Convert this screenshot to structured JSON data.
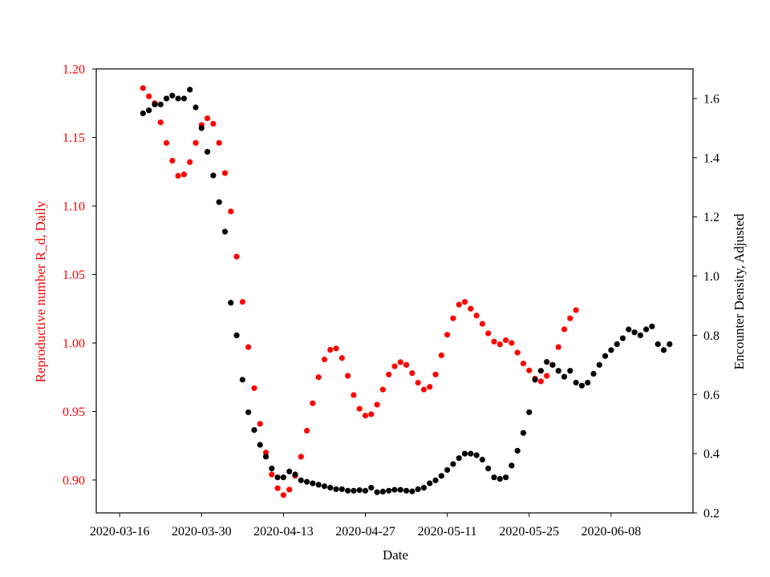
{
  "chart_data": {
    "type": "scatter",
    "xlabel": "Date",
    "x_ticks": [
      "2020-03-16",
      "2020-03-30",
      "2020-04-13",
      "2020-04-27",
      "2020-05-11",
      "2020-05-25",
      "2020-06-08"
    ],
    "y_left": {
      "label": "Reproductive number R_d, Daily",
      "color": "#ff0000",
      "range": [
        0.876,
        1.2
      ],
      "ticks": [
        "0.90",
        "0.95",
        "1.00",
        "1.05",
        "1.10",
        "1.15",
        "1.20"
      ]
    },
    "y_right": {
      "label": "Encounter Density, Adjusted",
      "color": "#000000",
      "range": [
        0.2,
        1.7
      ],
      "ticks": [
        "0.2",
        "0.4",
        "0.6",
        "0.8",
        "1.0",
        "1.2",
        "1.4",
        "1.6"
      ]
    },
    "x_range": [
      "2020-03-12",
      "2020-06-22"
    ],
    "series": [
      {
        "axis": "left",
        "color": "#ff0000",
        "points": [
          [
            "2020-03-20",
            1.186
          ],
          [
            "2020-03-21",
            1.18
          ],
          [
            "2020-03-22",
            1.175
          ],
          [
            "2020-03-23",
            1.161
          ],
          [
            "2020-03-24",
            1.146
          ],
          [
            "2020-03-25",
            1.133
          ],
          [
            "2020-03-26",
            1.122
          ],
          [
            "2020-03-27",
            1.123
          ],
          [
            "2020-03-28",
            1.132
          ],
          [
            "2020-03-29",
            1.146
          ],
          [
            "2020-03-30",
            1.159
          ],
          [
            "2020-03-31",
            1.164
          ],
          [
            "2020-04-01",
            1.16
          ],
          [
            "2020-04-02",
            1.146
          ],
          [
            "2020-04-03",
            1.124
          ],
          [
            "2020-04-04",
            1.096
          ],
          [
            "2020-04-05",
            1.063
          ],
          [
            "2020-04-06",
            1.03
          ],
          [
            "2020-04-07",
            0.997
          ],
          [
            "2020-04-08",
            0.967
          ],
          [
            "2020-04-09",
            0.941
          ],
          [
            "2020-04-10",
            0.92
          ],
          [
            "2020-04-11",
            0.904
          ],
          [
            "2020-04-12",
            0.894
          ],
          [
            "2020-04-13",
            0.889
          ],
          [
            "2020-04-14",
            0.893
          ],
          [
            "2020-04-15",
            0.903
          ],
          [
            "2020-04-16",
            0.917
          ],
          [
            "2020-04-17",
            0.936
          ],
          [
            "2020-04-18",
            0.956
          ],
          [
            "2020-04-19",
            0.975
          ],
          [
            "2020-04-20",
            0.988
          ],
          [
            "2020-04-21",
            0.995
          ],
          [
            "2020-04-22",
            0.996
          ],
          [
            "2020-04-23",
            0.989
          ],
          [
            "2020-04-24",
            0.976
          ],
          [
            "2020-04-25",
            0.962
          ],
          [
            "2020-04-26",
            0.952
          ],
          [
            "2020-04-27",
            0.947
          ],
          [
            "2020-04-28",
            0.948
          ],
          [
            "2020-04-29",
            0.955
          ],
          [
            "2020-04-30",
            0.966
          ],
          [
            "2020-05-01",
            0.977
          ],
          [
            "2020-05-02",
            0.983
          ],
          [
            "2020-05-03",
            0.986
          ],
          [
            "2020-05-04",
            0.984
          ],
          [
            "2020-05-05",
            0.978
          ],
          [
            "2020-05-06",
            0.971
          ],
          [
            "2020-05-07",
            0.966
          ],
          [
            "2020-05-08",
            0.968
          ],
          [
            "2020-05-09",
            0.977
          ],
          [
            "2020-05-10",
            0.991
          ],
          [
            "2020-05-11",
            1.006
          ],
          [
            "2020-05-12",
            1.018
          ],
          [
            "2020-05-13",
            1.028
          ],
          [
            "2020-05-14",
            1.03
          ],
          [
            "2020-05-15",
            1.025
          ],
          [
            "2020-05-16",
            1.02
          ],
          [
            "2020-05-17",
            1.014
          ],
          [
            "2020-05-18",
            1.007
          ],
          [
            "2020-05-19",
            1.001
          ],
          [
            "2020-05-20",
            0.999
          ],
          [
            "2020-05-21",
            1.002
          ],
          [
            "2020-05-22",
            1.0
          ],
          [
            "2020-05-23",
            0.993
          ],
          [
            "2020-05-24",
            0.985
          ],
          [
            "2020-05-25",
            0.98
          ],
          [
            "2020-05-26",
            0.974
          ],
          [
            "2020-05-27",
            0.972
          ],
          [
            "2020-05-28",
            0.976
          ],
          [
            "2020-05-29",
            0.984
          ],
          [
            "2020-05-30",
            0.997
          ],
          [
            "2020-05-31",
            1.01
          ],
          [
            "2020-06-01",
            1.018
          ],
          [
            "2020-06-02",
            1.024
          ]
        ]
      },
      {
        "axis": "right",
        "color": "#000000",
        "points": [
          [
            "2020-03-20",
            1.55
          ],
          [
            "2020-03-21",
            1.56
          ],
          [
            "2020-03-22",
            1.58
          ],
          [
            "2020-03-23",
            1.58
          ],
          [
            "2020-03-24",
            1.6
          ],
          [
            "2020-03-25",
            1.61
          ],
          [
            "2020-03-26",
            1.6
          ],
          [
            "2020-03-27",
            1.6
          ],
          [
            "2020-03-28",
            1.63
          ],
          [
            "2020-03-29",
            1.57
          ],
          [
            "2020-03-30",
            1.5
          ],
          [
            "2020-03-31",
            1.42
          ],
          [
            "2020-04-01",
            1.34
          ],
          [
            "2020-04-02",
            1.25
          ],
          [
            "2020-04-03",
            1.15
          ],
          [
            "2020-04-04",
            0.91
          ],
          [
            "2020-04-05",
            0.8
          ],
          [
            "2020-04-06",
            0.65
          ],
          [
            "2020-04-07",
            0.54
          ],
          [
            "2020-04-08",
            0.48
          ],
          [
            "2020-04-09",
            0.43
          ],
          [
            "2020-04-10",
            0.39
          ],
          [
            "2020-04-11",
            0.35
          ],
          [
            "2020-04-12",
            0.32
          ],
          [
            "2020-04-13",
            0.32
          ],
          [
            "2020-04-14",
            0.34
          ],
          [
            "2020-04-15",
            0.33
          ],
          [
            "2020-04-16",
            0.31
          ],
          [
            "2020-04-17",
            0.305
          ],
          [
            "2020-04-18",
            0.3
          ],
          [
            "2020-04-19",
            0.295
          ],
          [
            "2020-04-20",
            0.29
          ],
          [
            "2020-04-21",
            0.285
          ],
          [
            "2020-04-22",
            0.28
          ],
          [
            "2020-04-23",
            0.28
          ],
          [
            "2020-04-24",
            0.275
          ],
          [
            "2020-04-25",
            0.275
          ],
          [
            "2020-04-26",
            0.277
          ],
          [
            "2020-04-27",
            0.275
          ],
          [
            "2020-04-28",
            0.285
          ],
          [
            "2020-04-29",
            0.27
          ],
          [
            "2020-04-30",
            0.272
          ],
          [
            "2020-05-01",
            0.275
          ],
          [
            "2020-05-02",
            0.278
          ],
          [
            "2020-05-03",
            0.278
          ],
          [
            "2020-05-04",
            0.275
          ],
          [
            "2020-05-05",
            0.273
          ],
          [
            "2020-05-06",
            0.28
          ],
          [
            "2020-05-07",
            0.285
          ],
          [
            "2020-05-08",
            0.3
          ],
          [
            "2020-05-09",
            0.31
          ],
          [
            "2020-05-10",
            0.325
          ],
          [
            "2020-05-11",
            0.345
          ],
          [
            "2020-05-12",
            0.365
          ],
          [
            "2020-05-13",
            0.385
          ],
          [
            "2020-05-14",
            0.4
          ],
          [
            "2020-05-15",
            0.4
          ],
          [
            "2020-05-16",
            0.395
          ],
          [
            "2020-05-17",
            0.38
          ],
          [
            "2020-05-18",
            0.35
          ],
          [
            "2020-05-19",
            0.32
          ],
          [
            "2020-05-20",
            0.315
          ],
          [
            "2020-05-21",
            0.32
          ],
          [
            "2020-05-22",
            0.36
          ],
          [
            "2020-05-23",
            0.41
          ],
          [
            "2020-05-24",
            0.47
          ],
          [
            "2020-05-25",
            0.54
          ],
          [
            "2020-05-26",
            0.65
          ],
          [
            "2020-05-27",
            0.68
          ],
          [
            "2020-05-28",
            0.71
          ],
          [
            "2020-05-29",
            0.7
          ],
          [
            "2020-05-30",
            0.68
          ],
          [
            "2020-05-31",
            0.66
          ],
          [
            "2020-06-01",
            0.68
          ],
          [
            "2020-06-02",
            0.64
          ],
          [
            "2020-06-03",
            0.63
          ],
          [
            "2020-06-04",
            0.64
          ],
          [
            "2020-06-05",
            0.67
          ],
          [
            "2020-06-06",
            0.7
          ],
          [
            "2020-06-07",
            0.73
          ],
          [
            "2020-06-08",
            0.75
          ],
          [
            "2020-06-09",
            0.77
          ],
          [
            "2020-06-10",
            0.79
          ],
          [
            "2020-06-11",
            0.82
          ],
          [
            "2020-06-12",
            0.81
          ],
          [
            "2020-06-13",
            0.8
          ],
          [
            "2020-06-14",
            0.82
          ],
          [
            "2020-06-15",
            0.83
          ],
          [
            "2020-06-16",
            0.77
          ],
          [
            "2020-06-17",
            0.75
          ],
          [
            "2020-06-18",
            0.77
          ]
        ]
      }
    ]
  }
}
